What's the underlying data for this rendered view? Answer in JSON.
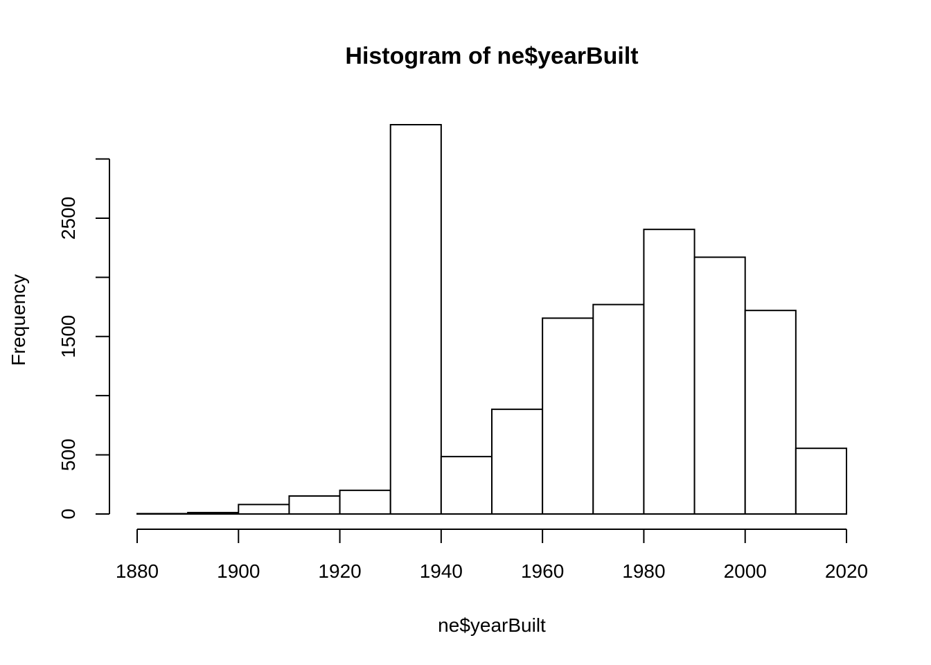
{
  "chart_data": {
    "type": "bar",
    "title": "Histogram of ne$yearBuilt",
    "xlabel": "ne$yearBuilt",
    "ylabel": "Frequency",
    "bin_edges": [
      1880,
      1890,
      1900,
      1910,
      1920,
      1930,
      1940,
      1950,
      1960,
      1970,
      1980,
      1990,
      2000,
      2010,
      2020
    ],
    "values": [
      3,
      12,
      80,
      152,
      200,
      3290,
      485,
      885,
      1655,
      1770,
      2405,
      2170,
      1720,
      555
    ],
    "xlim": [
      1880,
      2020
    ],
    "ylim": [
      0,
      3290
    ],
    "x_ticks": [
      1880,
      1900,
      1920,
      1940,
      1960,
      1980,
      2000,
      2020
    ],
    "x_tick_labels": [
      "1880",
      "1900",
      "1920",
      "1940",
      "1960",
      "1980",
      "2000",
      "2020"
    ],
    "y_ticks": [
      0,
      500,
      1000,
      1500,
      2000,
      2500,
      3000
    ],
    "y_tick_labels": [
      "0",
      "500",
      "",
      "1500",
      "",
      "2500",
      ""
    ],
    "grid": false,
    "legend": "none"
  }
}
